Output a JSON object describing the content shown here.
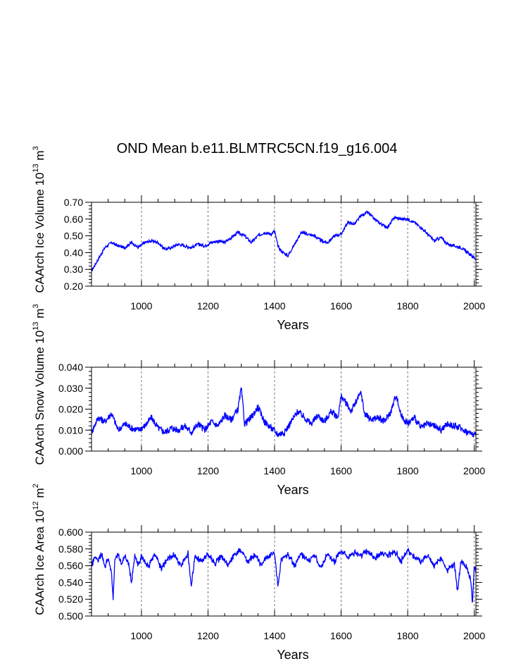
{
  "figure": {
    "title": "OND Mean b.e11.BLMTRC5CN.f19_g16.004",
    "line_color": "#0000ff"
  },
  "chart_data": [
    {
      "type": "line",
      "title": "OND Mean b.e11.BLMTRC5CN.f19_g16.004",
      "xlabel": "Years",
      "ylabel_main": "CAArch Ice Volume 10",
      "ylabel_exp": "13",
      "ylabel_unit": "m",
      "ylabel_unit_exp": "3",
      "xlim": [
        850,
        2005
      ],
      "ylim": [
        0.2,
        0.7
      ],
      "xticks": [
        1000,
        1200,
        1400,
        1600,
        1800,
        2000
      ],
      "xtick_labels": [
        "1000",
        "1200",
        "1400",
        "1600",
        "1800",
        "2000"
      ],
      "yticks": [
        0.2,
        0.3,
        0.4,
        0.5,
        0.6,
        0.7
      ],
      "ytick_labels": [
        "0.20",
        "0.30",
        "0.40",
        "0.50",
        "0.60",
        "0.70"
      ],
      "grid": "vertical dashed at 1000-2000",
      "series": [
        {
          "name": "Ice Volume",
          "x": [
            850,
            870,
            890,
            910,
            930,
            950,
            970,
            990,
            1010,
            1030,
            1050,
            1070,
            1090,
            1110,
            1130,
            1150,
            1170,
            1190,
            1210,
            1230,
            1250,
            1270,
            1290,
            1310,
            1330,
            1350,
            1370,
            1390,
            1400,
            1410,
            1420,
            1440,
            1460,
            1480,
            1500,
            1520,
            1540,
            1560,
            1580,
            1600,
            1620,
            1640,
            1660,
            1680,
            1700,
            1720,
            1740,
            1760,
            1780,
            1800,
            1820,
            1840,
            1860,
            1880,
            1900,
            1920,
            1940,
            1960,
            1980,
            2000,
            2005
          ],
          "values": [
            0.29,
            0.36,
            0.43,
            0.46,
            0.44,
            0.43,
            0.46,
            0.43,
            0.46,
            0.47,
            0.46,
            0.42,
            0.43,
            0.45,
            0.44,
            0.43,
            0.45,
            0.44,
            0.46,
            0.47,
            0.46,
            0.49,
            0.52,
            0.5,
            0.46,
            0.5,
            0.52,
            0.51,
            0.53,
            0.44,
            0.41,
            0.38,
            0.45,
            0.52,
            0.51,
            0.5,
            0.47,
            0.46,
            0.5,
            0.51,
            0.58,
            0.57,
            0.62,
            0.64,
            0.6,
            0.57,
            0.55,
            0.61,
            0.6,
            0.6,
            0.58,
            0.55,
            0.51,
            0.47,
            0.49,
            0.45,
            0.44,
            0.43,
            0.4,
            0.37,
            0.36
          ]
        }
      ]
    },
    {
      "type": "line",
      "xlabel": "Years",
      "ylabel_main": "CAArch Snow Volume 10",
      "ylabel_exp": "13",
      "ylabel_unit": "m",
      "ylabel_unit_exp": "3",
      "xlim": [
        850,
        2005
      ],
      "ylim": [
        0.0,
        0.04
      ],
      "xticks": [
        1000,
        1200,
        1400,
        1600,
        1800,
        2000
      ],
      "xtick_labels": [
        "1000",
        "1200",
        "1400",
        "1600",
        "1800",
        "2000"
      ],
      "yticks": [
        0.0,
        0.01,
        0.02,
        0.03,
        0.04
      ],
      "ytick_labels": [
        "0.000",
        "0.010",
        "0.020",
        "0.030",
        "0.040"
      ],
      "grid": "vertical dashed at 1000-2000",
      "series": [
        {
          "name": "Snow Volume",
          "x": [
            850,
            870,
            890,
            910,
            930,
            950,
            970,
            990,
            1010,
            1030,
            1050,
            1070,
            1090,
            1110,
            1130,
            1150,
            1170,
            1190,
            1210,
            1230,
            1250,
            1270,
            1290,
            1300,
            1310,
            1330,
            1350,
            1370,
            1390,
            1410,
            1430,
            1450,
            1470,
            1490,
            1510,
            1530,
            1550,
            1570,
            1590,
            1600,
            1610,
            1630,
            1650,
            1660,
            1670,
            1690,
            1710,
            1730,
            1750,
            1765,
            1780,
            1800,
            1820,
            1840,
            1860,
            1880,
            1900,
            1920,
            1940,
            1960,
            1980,
            2000,
            2005
          ],
          "values": [
            0.009,
            0.016,
            0.014,
            0.018,
            0.01,
            0.013,
            0.011,
            0.01,
            0.012,
            0.016,
            0.011,
            0.009,
            0.011,
            0.01,
            0.012,
            0.009,
            0.013,
            0.01,
            0.014,
            0.012,
            0.017,
            0.015,
            0.02,
            0.03,
            0.013,
            0.016,
            0.021,
            0.014,
            0.011,
            0.008,
            0.009,
            0.014,
            0.019,
            0.016,
            0.013,
            0.017,
            0.014,
            0.019,
            0.016,
            0.026,
            0.024,
            0.019,
            0.025,
            0.028,
            0.018,
            0.015,
            0.016,
            0.014,
            0.019,
            0.027,
            0.017,
            0.013,
            0.016,
            0.011,
            0.013,
            0.012,
            0.01,
            0.013,
            0.012,
            0.011,
            0.009,
            0.008,
            0.007
          ]
        }
      ]
    },
    {
      "type": "line",
      "xlabel": "Years",
      "ylabel_main": "CAArch Ice Area 10",
      "ylabel_exp": "12",
      "ylabel_unit": "m",
      "ylabel_unit_exp": "2",
      "xlim": [
        850,
        2005
      ],
      "ylim": [
        0.5,
        0.6
      ],
      "xticks": [
        1000,
        1200,
        1400,
        1600,
        1800,
        2000
      ],
      "xtick_labels": [
        "1000",
        "1200",
        "1400",
        "1600",
        "1800",
        "2000"
      ],
      "yticks": [
        0.5,
        0.52,
        0.54,
        0.56,
        0.58,
        0.6
      ],
      "ytick_labels": [
        "0.500",
        "0.520",
        "0.540",
        "0.560",
        "0.580",
        "0.600"
      ],
      "grid": "vertical dashed at 1000-2000",
      "series": [
        {
          "name": "Ice Area",
          "x": [
            850,
            860,
            870,
            880,
            890,
            900,
            910,
            915,
            920,
            930,
            940,
            950,
            960,
            970,
            980,
            990,
            1000,
            1020,
            1040,
            1060,
            1080,
            1100,
            1120,
            1140,
            1150,
            1160,
            1180,
            1200,
            1220,
            1240,
            1260,
            1280,
            1300,
            1320,
            1340,
            1360,
            1380,
            1400,
            1410,
            1420,
            1440,
            1460,
            1480,
            1500,
            1520,
            1540,
            1560,
            1580,
            1600,
            1620,
            1640,
            1660,
            1680,
            1700,
            1720,
            1740,
            1760,
            1780,
            1800,
            1820,
            1840,
            1860,
            1880,
            1900,
            1920,
            1940,
            1950,
            1960,
            1980,
            1990,
            1995,
            2000,
            2005
          ],
          "values": [
            0.558,
            0.572,
            0.565,
            0.574,
            0.56,
            0.569,
            0.553,
            0.52,
            0.568,
            0.575,
            0.56,
            0.571,
            0.565,
            0.54,
            0.572,
            0.562,
            0.57,
            0.558,
            0.574,
            0.556,
            0.569,
            0.572,
            0.56,
            0.575,
            0.535,
            0.57,
            0.566,
            0.574,
            0.562,
            0.571,
            0.56,
            0.574,
            0.578,
            0.565,
            0.573,
            0.561,
            0.572,
            0.575,
            0.535,
            0.567,
            0.573,
            0.56,
            0.575,
            0.566,
            0.572,
            0.558,
            0.574,
            0.565,
            0.577,
            0.57,
            0.576,
            0.573,
            0.578,
            0.569,
            0.575,
            0.572,
            0.577,
            0.566,
            0.578,
            0.57,
            0.565,
            0.571,
            0.56,
            0.568,
            0.555,
            0.561,
            0.53,
            0.565,
            0.556,
            0.54,
            0.515,
            0.56,
            0.552
          ]
        }
      ]
    }
  ]
}
